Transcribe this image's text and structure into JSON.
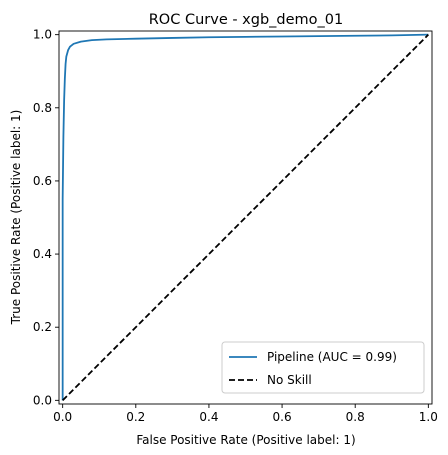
{
  "chart_data": {
    "type": "line",
    "title": "ROC Curve - xgb_demo_01",
    "xlabel": "False Positive Rate (Positive label: 1)",
    "ylabel": "True Positive Rate (Positive label: 1)",
    "xlim": [
      -0.01,
      1.01
    ],
    "ylim": [
      -0.01,
      1.01
    ],
    "xticks": [
      0.0,
      0.2,
      0.4,
      0.6,
      0.8,
      1.0
    ],
    "yticks": [
      0.0,
      0.2,
      0.4,
      0.6,
      0.8,
      1.0
    ],
    "xtick_labels": [
      "0.0",
      "0.2",
      "0.4",
      "0.6",
      "0.8",
      "1.0"
    ],
    "ytick_labels": [
      "0.0",
      "0.2",
      "0.4",
      "0.6",
      "0.8",
      "1.0"
    ],
    "grid": false,
    "legend_position": "lower-right",
    "series": [
      {
        "name": "Pipeline (AUC = 0.99)",
        "color": "#1f77b4",
        "style": "solid",
        "x": [
          0.0,
          0.0,
          0.002,
          0.004,
          0.006,
          0.008,
          0.01,
          0.015,
          0.02,
          0.03,
          0.05,
          0.08,
          0.12,
          0.2,
          0.3,
          0.4,
          0.5,
          0.6,
          0.7,
          0.8,
          0.9,
          1.0
        ],
        "y": [
          0.0,
          0.55,
          0.72,
          0.82,
          0.88,
          0.92,
          0.94,
          0.958,
          0.967,
          0.975,
          0.981,
          0.985,
          0.987,
          0.989,
          0.991,
          0.993,
          0.994,
          0.995,
          0.996,
          0.997,
          0.998,
          1.0
        ]
      },
      {
        "name": "No Skill",
        "color": "#000000",
        "style": "dashed",
        "x": [
          0.0,
          1.0
        ],
        "y": [
          0.0,
          1.0
        ]
      }
    ]
  }
}
